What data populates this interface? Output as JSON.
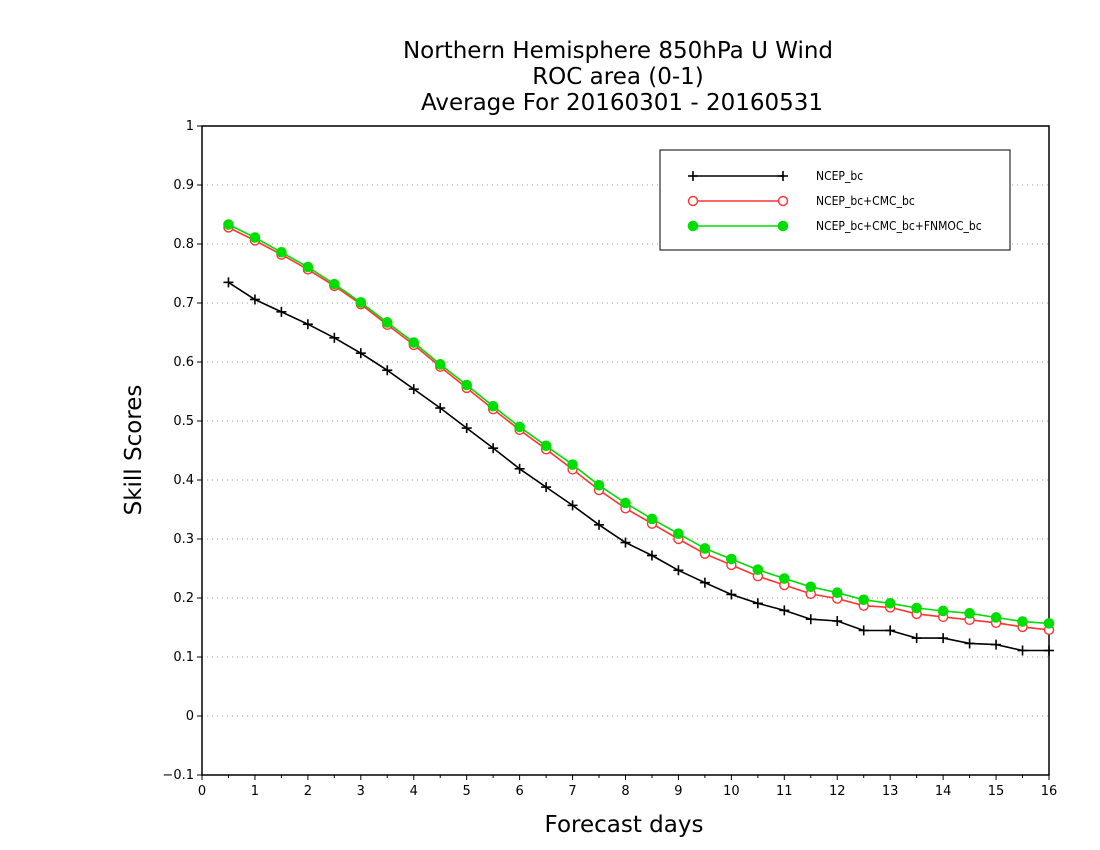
{
  "chart_data": {
    "type": "line",
    "title": [
      "Northern Hemisphere 850hPa U Wind",
      "ROC area (0-1)",
      "Average For 20160301 - 20160531"
    ],
    "xlabel": "Forecast days",
    "ylabel": "Skill Scores",
    "xlim": [
      0,
      16
    ],
    "ylim": [
      -0.1,
      1
    ],
    "xticks": [
      "0",
      "1",
      "2",
      "3",
      "4",
      "5",
      "6",
      "7",
      "8",
      "9",
      "10",
      "11",
      "12",
      "13",
      "14",
      "15",
      "16"
    ],
    "yticks": [
      "−0.1",
      "0",
      "0.1",
      "0.2",
      "0.3",
      "0.4",
      "0.5",
      "0.6",
      "0.7",
      "0.8",
      "0.9",
      "1"
    ],
    "grid": "dotted-horizontal",
    "legend_position": "top-right",
    "x": [
      0.5,
      1,
      1.5,
      2,
      2.5,
      3,
      3.5,
      4,
      4.5,
      5,
      5.5,
      6,
      6.5,
      7,
      7.5,
      8,
      8.5,
      9,
      9.5,
      10,
      10.5,
      11,
      11.5,
      12,
      12.5,
      13,
      13.5,
      14,
      14.5,
      15,
      15.5,
      16
    ],
    "series": [
      {
        "name": "NCEP_bc",
        "color": "#000000",
        "marker": "plus",
        "values": [
          0.735,
          0.706,
          0.685,
          0.664,
          0.641,
          0.615,
          0.586,
          0.554,
          0.522,
          0.488,
          0.454,
          0.419,
          0.388,
          0.357,
          0.324,
          0.294,
          0.272,
          0.247,
          0.226,
          0.206,
          0.191,
          0.179,
          0.164,
          0.161,
          0.145,
          0.145,
          0.132,
          0.132,
          0.123,
          0.121,
          0.111,
          0.111
        ]
      },
      {
        "name": "NCEP_bc+CMC_bc",
        "color": "#ff3333",
        "marker": "open-circle",
        "values": [
          0.828,
          0.806,
          0.782,
          0.757,
          0.729,
          0.698,
          0.663,
          0.629,
          0.592,
          0.556,
          0.52,
          0.485,
          0.452,
          0.418,
          0.383,
          0.352,
          0.326,
          0.3,
          0.275,
          0.256,
          0.237,
          0.222,
          0.207,
          0.199,
          0.187,
          0.184,
          0.173,
          0.168,
          0.163,
          0.158,
          0.151,
          0.146
        ]
      },
      {
        "name": "NCEP_bc+CMC_bc+FNMOC_bc",
        "color": "#00dd00",
        "marker": "filled-circle",
        "values": [
          0.833,
          0.811,
          0.786,
          0.761,
          0.732,
          0.701,
          0.667,
          0.633,
          0.596,
          0.561,
          0.525,
          0.49,
          0.458,
          0.426,
          0.391,
          0.361,
          0.334,
          0.309,
          0.284,
          0.266,
          0.248,
          0.233,
          0.219,
          0.209,
          0.197,
          0.191,
          0.183,
          0.178,
          0.174,
          0.167,
          0.16,
          0.157
        ]
      }
    ]
  }
}
